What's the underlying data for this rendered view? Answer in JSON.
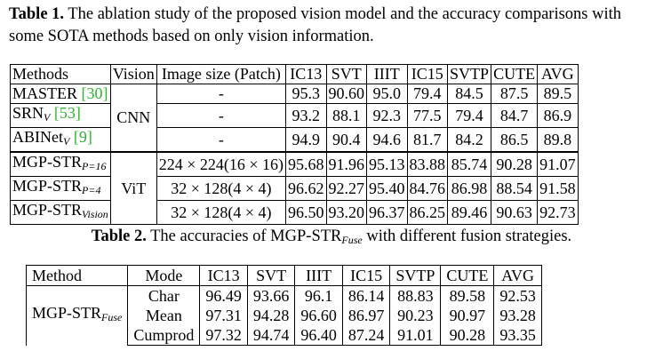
{
  "table1": {
    "caption_label": "Table 1.",
    "caption_text": " The ablation study of the proposed vision model and the accuracy comparisons with some SOTA methods based on only vision information.",
    "headers": [
      "Methods",
      "Vision",
      "Image size (Patch)",
      "IC13",
      "SVT",
      "IIIT",
      "IC15",
      "SVTP",
      "CUTE",
      "AVG"
    ],
    "group1_vision": "CNN",
    "group2_vision": "ViT",
    "rows": [
      {
        "method": "MASTER",
        "ref": "[30]",
        "sub": "",
        "size": "-",
        "vals": [
          "95.3",
          "90.60",
          "95.0",
          "79.4",
          "84.5",
          "87.5",
          "89.5"
        ]
      },
      {
        "method": "SRN",
        "ref": "[53]",
        "sub": "V",
        "size": "-",
        "vals": [
          "93.2",
          "88.1",
          "92.3",
          "77.5",
          "79.4",
          "84.7",
          "86.9"
        ]
      },
      {
        "method": "ABINet",
        "ref": "[9]",
        "sub": "V",
        "size": "-",
        "vals": [
          "94.9",
          "90.4",
          "94.6",
          "81.7",
          "84.2",
          "86.5",
          "89.8"
        ]
      },
      {
        "method": "MGP-STR",
        "ref": "",
        "sub": "P=16",
        "size": "224 × 224(16 × 16)",
        "vals": [
          "95.68",
          "91.96",
          "95.13",
          "83.88",
          "85.74",
          "90.28",
          "91.07"
        ]
      },
      {
        "method": "MGP-STR",
        "ref": "",
        "sub": "P=4",
        "size": "32 × 128(4 × 4)",
        "vals": [
          "96.62",
          "92.27",
          "95.40",
          "84.76",
          "86.98",
          "88.54",
          "91.58"
        ]
      },
      {
        "method": "MGP-STR",
        "ref": "",
        "sub": "Vision",
        "size": "32 × 128(4 × 4)",
        "vals": [
          "96.50",
          "93.20",
          "96.37",
          "86.25",
          "89.46",
          "90.63",
          "92.73"
        ]
      }
    ]
  },
  "table2": {
    "caption_label": "Table 2.",
    "caption_pre": " The accuracies of MGP-STR",
    "caption_sub": "Fuse",
    "caption_post": " with different fusion strategies.",
    "headers": [
      "Method",
      "Mode",
      "IC13",
      "SVT",
      "IIIT",
      "IC15",
      "SVTP",
      "CUTE",
      "AVG"
    ],
    "method": "MGP-STR",
    "method_sub": "Fuse",
    "rows": [
      {
        "mode": "Char",
        "vals": [
          "96.49",
          "93.66",
          "96.1",
          "86.14",
          "88.83",
          "89.58",
          "92.53"
        ]
      },
      {
        "mode": "Mean",
        "vals": [
          "97.31",
          "94.28",
          "96.60",
          "86.97",
          "90.23",
          "90.97",
          "93.28"
        ]
      },
      {
        "mode": "Cumprod",
        "vals": [
          "97.32",
          "94.74",
          "96.40",
          "87.24",
          "91.01",
          "90.28",
          "93.35"
        ]
      }
    ]
  }
}
